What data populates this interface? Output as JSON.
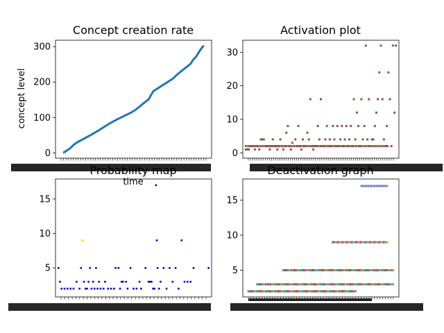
{
  "chart_data": [
    {
      "type": "line",
      "title": "Concept creation rate",
      "xlabel": "time",
      "ylabel": "concept level",
      "ylim": [
        -15,
        318
      ],
      "yticks": [
        0,
        100,
        200,
        300
      ],
      "x_tick_labels_note": "dense overlapping tick labels, unreadable",
      "color": "#1f77b4",
      "series": [
        {
          "points": [
            [
              0,
              0
            ],
            [
              3,
              6
            ],
            [
              6,
              12
            ],
            [
              8,
              18
            ],
            [
              10,
              24
            ],
            [
              14,
              32
            ],
            [
              20,
              42
            ],
            [
              26,
              52
            ],
            [
              32,
              63
            ],
            [
              38,
              75
            ],
            [
              44,
              86
            ],
            [
              50,
              96
            ],
            [
              56,
              105
            ],
            [
              62,
              114
            ],
            [
              66,
              122
            ],
            [
              70,
              132
            ],
            [
              74,
              142
            ],
            [
              78,
              152
            ],
            [
              80,
              164
            ],
            [
              82,
              174
            ],
            [
              86,
              182
            ],
            [
              90,
              190
            ],
            [
              94,
              198
            ],
            [
              100,
              210
            ],
            [
              104,
              222
            ],
            [
              108,
              232
            ],
            [
              112,
              242
            ],
            [
              116,
              252
            ],
            [
              118,
              262
            ],
            [
              121,
              272
            ],
            [
              123,
              282
            ],
            [
              125,
              292
            ],
            [
              127,
              300
            ],
            [
              128,
              303
            ]
          ]
        }
      ],
      "xlim": [
        -7,
        135
      ]
    },
    {
      "type": "scatter",
      "title": "Activation plot",
      "xlabel": "",
      "ylabel": "",
      "ylim": [
        -1.6,
        33.6
      ],
      "yticks": [
        0,
        10,
        20,
        30
      ],
      "xlim": [
        -2,
        102
      ],
      "x_tick_labels_note": "dense overlapping tick labels, unreadable",
      "color": "#8c564b",
      "points": [
        [
          0,
          1
        ],
        [
          1,
          1
        ],
        [
          2,
          1
        ],
        [
          3,
          2
        ],
        [
          4,
          2
        ],
        [
          5,
          2
        ],
        [
          6,
          1
        ],
        [
          7,
          2
        ],
        [
          8,
          2
        ],
        [
          9,
          1
        ],
        [
          10,
          4
        ],
        [
          11,
          4
        ],
        [
          12,
          4
        ],
        [
          13,
          2
        ],
        [
          14,
          2
        ],
        [
          15,
          2
        ],
        [
          16,
          1
        ],
        [
          17,
          2
        ],
        [
          18,
          4
        ],
        [
          19,
          2
        ],
        [
          20,
          2
        ],
        [
          21,
          1
        ],
        [
          22,
          2
        ],
        [
          23,
          4
        ],
        [
          24,
          2
        ],
        [
          25,
          1
        ],
        [
          26,
          2
        ],
        [
          27,
          6
        ],
        [
          28,
          8
        ],
        [
          29,
          2
        ],
        [
          30,
          1
        ],
        [
          31,
          3
        ],
        [
          32,
          2
        ],
        [
          33,
          4
        ],
        [
          34,
          2
        ],
        [
          35,
          8
        ],
        [
          36,
          2
        ],
        [
          37,
          1
        ],
        [
          38,
          4
        ],
        [
          39,
          2
        ],
        [
          40,
          2
        ],
        [
          41,
          6
        ],
        [
          42,
          4
        ],
        [
          43,
          16
        ],
        [
          44,
          2
        ],
        [
          45,
          1
        ],
        [
          46,
          2
        ],
        [
          47,
          2
        ],
        [
          48,
          8
        ],
        [
          49,
          4
        ],
        [
          50,
          16
        ],
        [
          51,
          2
        ],
        [
          52,
          2
        ],
        [
          53,
          4
        ],
        [
          54,
          8
        ],
        [
          55,
          2
        ],
        [
          56,
          4
        ],
        [
          57,
          2
        ],
        [
          58,
          8
        ],
        [
          59,
          4
        ],
        [
          60,
          2
        ],
        [
          61,
          8
        ],
        [
          62,
          2
        ],
        [
          63,
          4
        ],
        [
          64,
          8
        ],
        [
          65,
          2
        ],
        [
          66,
          4
        ],
        [
          67,
          8
        ],
        [
          68,
          2
        ],
        [
          69,
          4
        ],
        [
          70,
          8
        ],
        [
          71,
          2
        ],
        [
          72,
          16
        ],
        [
          73,
          4
        ],
        [
          74,
          12
        ],
        [
          75,
          8
        ],
        [
          76,
          2
        ],
        [
          77,
          16
        ],
        [
          78,
          4
        ],
        [
          79,
          8
        ],
        [
          80,
          32
        ],
        [
          81,
          4
        ],
        [
          82,
          16
        ],
        [
          83,
          2
        ],
        [
          84,
          4
        ],
        [
          85,
          4
        ],
        [
          86,
          8
        ],
        [
          87,
          12
        ],
        [
          88,
          16
        ],
        [
          89,
          24
        ],
        [
          90,
          32
        ],
        [
          91,
          16
        ],
        [
          92,
          4
        ],
        [
          93,
          2
        ],
        [
          94,
          8
        ],
        [
          95,
          24
        ],
        [
          96,
          16
        ],
        [
          97,
          2
        ],
        [
          98,
          32
        ],
        [
          99,
          12
        ],
        [
          100,
          32
        ]
      ]
    },
    {
      "type": "scatter",
      "title": "Probability map",
      "xlabel": "",
      "ylabel": "",
      "ylim": [
        0.8,
        17.9
      ],
      "yticks": [
        5,
        10,
        15
      ],
      "xlim": [
        -2,
        102
      ],
      "x_tick_labels_note": "dense overlapping tick labels beginning 0.0...",
      "color": "#0000cc",
      "accent_color": "#ffc000",
      "points": [
        [
          0,
          5
        ],
        [
          1,
          3
        ],
        [
          2,
          2
        ],
        [
          4,
          2
        ],
        [
          6,
          2
        ],
        [
          8,
          2
        ],
        [
          10,
          2
        ],
        [
          12,
          3
        ],
        [
          14,
          2
        ],
        [
          15,
          5
        ],
        [
          16,
          9
        ],
        [
          17,
          3
        ],
        [
          18,
          2
        ],
        [
          19,
          2
        ],
        [
          20,
          3
        ],
        [
          21,
          5
        ],
        [
          22,
          2
        ],
        [
          23,
          3
        ],
        [
          24,
          2
        ],
        [
          25,
          5
        ],
        [
          26,
          2
        ],
        [
          27,
          3
        ],
        [
          28,
          2
        ],
        [
          30,
          2
        ],
        [
          31,
          3
        ],
        [
          33,
          2
        ],
        [
          35,
          2
        ],
        [
          37,
          2
        ],
        [
          38,
          5
        ],
        [
          40,
          5
        ],
        [
          41,
          2
        ],
        [
          42,
          3
        ],
        [
          43,
          3
        ],
        [
          45,
          3
        ],
        [
          46,
          2
        ],
        [
          48,
          5
        ],
        [
          50,
          2
        ],
        [
          52,
          2
        ],
        [
          54,
          3
        ],
        [
          55,
          2
        ],
        [
          58,
          5
        ],
        [
          60,
          3
        ],
        [
          61,
          3
        ],
        [
          62,
          3
        ],
        [
          63,
          2
        ],
        [
          64,
          2
        ],
        [
          65,
          17
        ],
        [
          65.5,
          9
        ],
        [
          66,
          5
        ],
        [
          67,
          2
        ],
        [
          68,
          3
        ],
        [
          70,
          5
        ],
        [
          72,
          2
        ],
        [
          74,
          5
        ],
        [
          76,
          3
        ],
        [
          78,
          5
        ],
        [
          80,
          2
        ],
        [
          82,
          9
        ],
        [
          84,
          3
        ],
        [
          86,
          3
        ],
        [
          88,
          3
        ],
        [
          90,
          5
        ],
        [
          100,
          5
        ]
      ]
    },
    {
      "type": "scatter",
      "title": "Deactivation graph",
      "xlabel": "",
      "ylabel": "",
      "ylim": [
        1.2,
        18
      ],
      "yticks": [
        5,
        10,
        15
      ],
      "xlim": [
        -4,
        104
      ],
      "x_tick_labels_note": "dense overlapping tick labels, unreadable",
      "series": [
        {
          "y": 2,
          "x_range": [
            0,
            74
          ],
          "colors": [
            "#1f77b4",
            "#ff7f0e",
            "#2ca02c",
            "#d62728",
            "#9467bd",
            "#8c564b",
            "#e377c2",
            "#7f7f7f",
            "#bcbd22",
            "#17becf"
          ]
        },
        {
          "y": 3,
          "x_range": [
            6,
            100
          ],
          "colors": [
            "#1f77b4",
            "#ff7f0e",
            "#2ca02c",
            "#d62728",
            "#9467bd",
            "#8c564b",
            "#e377c2",
            "#7f7f7f",
            "#bcbd22",
            "#17becf"
          ]
        },
        {
          "y": 5,
          "x_range": [
            24,
            100
          ],
          "colors": [
            "#1f77b4",
            "#ff7f0e",
            "#2ca02c",
            "#d62728",
            "#9467bd",
            "#8c564b",
            "#e377c2",
            "#7f7f7f",
            "#bcbd22",
            "#17becf"
          ]
        },
        {
          "y": 9,
          "x_range": [
            58,
            96
          ],
          "colors": [
            "#bcbd22",
            "#d62728",
            "#9467bd",
            "#17becf",
            "#e377c2"
          ]
        },
        {
          "y": 17,
          "x_range": [
            78,
            96
          ],
          "colors": [
            "#17becf",
            "#e377c2",
            "#9467bd"
          ]
        }
      ]
    }
  ]
}
